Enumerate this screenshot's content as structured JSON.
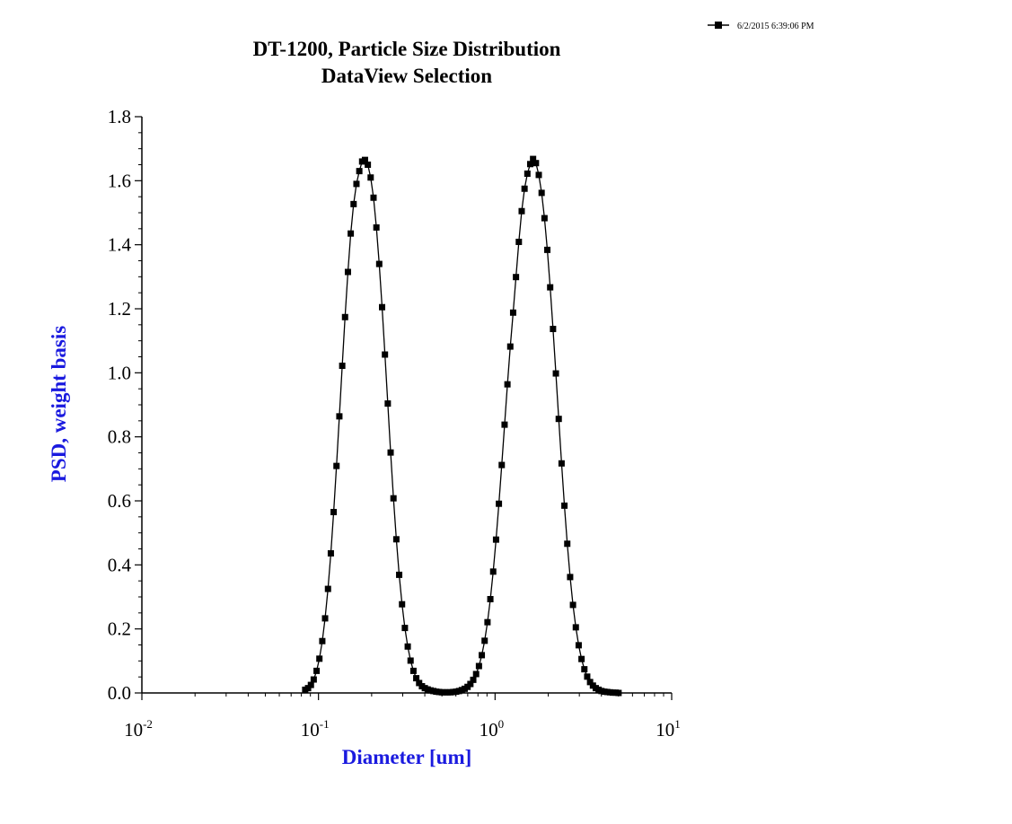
{
  "chart_data": {
    "type": "line",
    "title": "DT-1200, Particle Size Distribution",
    "subtitle": "DataView Selection",
    "xlabel": "Diameter [um]",
    "ylabel": "PSD, weight basis",
    "x_scale": "log",
    "xlim": [
      0.01,
      10
    ],
    "ylim": [
      0,
      1.8
    ],
    "x_ticks": [
      {
        "base": "10",
        "exp": "-2",
        "value": 0.01
      },
      {
        "base": "10",
        "exp": "-1",
        "value": 0.1
      },
      {
        "base": "10",
        "exp": "0",
        "value": 1
      },
      {
        "base": "10",
        "exp": "1",
        "value": 10
      }
    ],
    "y_ticks": [
      "0.0",
      "0.2",
      "0.4",
      "0.6",
      "0.8",
      "1.0",
      "1.2",
      "1.4",
      "1.6",
      "1.8"
    ],
    "grid": false,
    "legend_position": "top-right",
    "marker": "filled-square",
    "colors": {
      "series": "#000000",
      "xlabel": "#1a1adf",
      "ylabel": "#1a1adf"
    },
    "series": [
      {
        "name": "6/2/2015 6:39:06 PM",
        "x": [
          0.0841,
          0.0873,
          0.0906,
          0.094,
          0.0976,
          0.1012,
          0.1051,
          0.109,
          0.1132,
          0.1175,
          0.1219,
          0.1265,
          0.1313,
          0.1363,
          0.1414,
          0.1468,
          0.1523,
          0.1581,
          0.1641,
          0.1703,
          0.1767,
          0.1834,
          0.1903,
          0.1975,
          0.205,
          0.2128,
          0.2208,
          0.2292,
          0.2379,
          0.2469,
          0.2562,
          0.2659,
          0.276,
          0.2864,
          0.2973,
          0.3085,
          0.3202,
          0.3323,
          0.3449,
          0.3579,
          0.3715,
          0.3855,
          0.4001,
          0.4153,
          0.431,
          0.4473,
          0.4642,
          0.4818,
          0.5,
          0.5189,
          0.5386,
          0.559,
          0.5801,
          0.6021,
          0.6248,
          0.6485,
          0.673,
          0.6985,
          0.7249,
          0.7524,
          0.7809,
          0.8104,
          0.8411,
          0.8729,
          0.9059,
          0.9402,
          0.9758,
          1.0128,
          1.0511,
          1.0909,
          1.1321,
          1.175,
          1.2195,
          1.2656,
          1.3135,
          1.3633,
          1.4149,
          1.4684,
          1.524,
          1.5817,
          1.6415,
          1.7037,
          1.7681,
          1.835,
          1.9045,
          1.9766,
          2.0514,
          2.129,
          2.2096,
          2.2932,
          2.3801,
          2.4701,
          2.5636,
          2.6607,
          2.7614,
          2.8659,
          2.9744,
          3.087,
          3.2038,
          3.3251,
          3.4509,
          3.5816,
          3.7171,
          3.8578,
          4.0039,
          4.1554,
          4.3127,
          4.476,
          4.6454,
          4.8212,
          5.0037
        ],
        "y": [
          0.01,
          0.015,
          0.025,
          0.042,
          0.069,
          0.107,
          0.162,
          0.233,
          0.325,
          0.436,
          0.565,
          0.709,
          0.864,
          1.022,
          1.174,
          1.315,
          1.435,
          1.527,
          1.59,
          1.63,
          1.66,
          1.665,
          1.65,
          1.61,
          1.547,
          1.454,
          1.34,
          1.205,
          1.057,
          0.904,
          0.751,
          0.608,
          0.48,
          0.369,
          0.277,
          0.203,
          0.145,
          0.101,
          0.069,
          0.046,
          0.031,
          0.021,
          0.015,
          0.011,
          0.008,
          0.006,
          0.004,
          0.003,
          0.002,
          0.002,
          0.002,
          0.002,
          0.003,
          0.004,
          0.006,
          0.009,
          0.013,
          0.019,
          0.028,
          0.041,
          0.059,
          0.084,
          0.118,
          0.163,
          0.221,
          0.293,
          0.379,
          0.479,
          0.591,
          0.712,
          0.838,
          0.964,
          1.082,
          1.188,
          1.299,
          1.409,
          1.505,
          1.575,
          1.622,
          1.652,
          1.668,
          1.655,
          1.618,
          1.562,
          1.483,
          1.384,
          1.267,
          1.137,
          0.998,
          0.856,
          0.717,
          0.585,
          0.466,
          0.362,
          0.275,
          0.205,
          0.149,
          0.106,
          0.074,
          0.051,
          0.034,
          0.023,
          0.015,
          0.01,
          0.006,
          0.004,
          0.003,
          0.002,
          0.001,
          0.001,
          0.0
        ]
      }
    ]
  }
}
